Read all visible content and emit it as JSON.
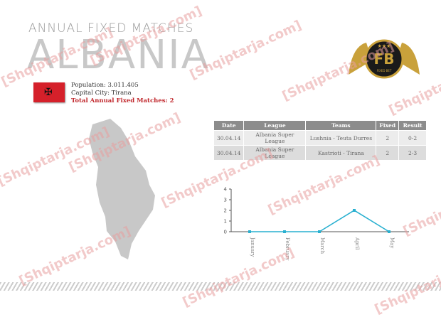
{
  "header": {
    "subtitle": "ANNUAL FIXED MATCHES",
    "country": "ALBANIA"
  },
  "info": {
    "population": "Population: 3.011.405",
    "capital": "Capital City: Tirana",
    "total": "Total Annual Fixed Matches: 2"
  },
  "logo": {
    "text": "FB",
    "caption": "FIXED BET"
  },
  "table": {
    "headers": [
      "Date",
      "League",
      "Teams",
      "Fixed",
      "Result"
    ],
    "rows": [
      [
        "30.04.14",
        "Albania Super League",
        "Lushnia - Teuta Durres",
        "2",
        "0-2"
      ],
      [
        "30.04.14",
        "Albania Super League",
        "Kastrioti - Tirana",
        "2",
        "2-3"
      ]
    ]
  },
  "watermark": "[Shqiptarja.com]",
  "colors": {
    "line": "#29b0d0",
    "accent": "#c0262b"
  },
  "chart_data": {
    "type": "line",
    "categories": [
      "January",
      "February",
      "March",
      "April",
      "May"
    ],
    "values": [
      0,
      0,
      0,
      2,
      0
    ],
    "ylim": [
      0,
      4
    ],
    "yticks": [
      "0",
      "1",
      "2",
      "3",
      "4"
    ]
  }
}
